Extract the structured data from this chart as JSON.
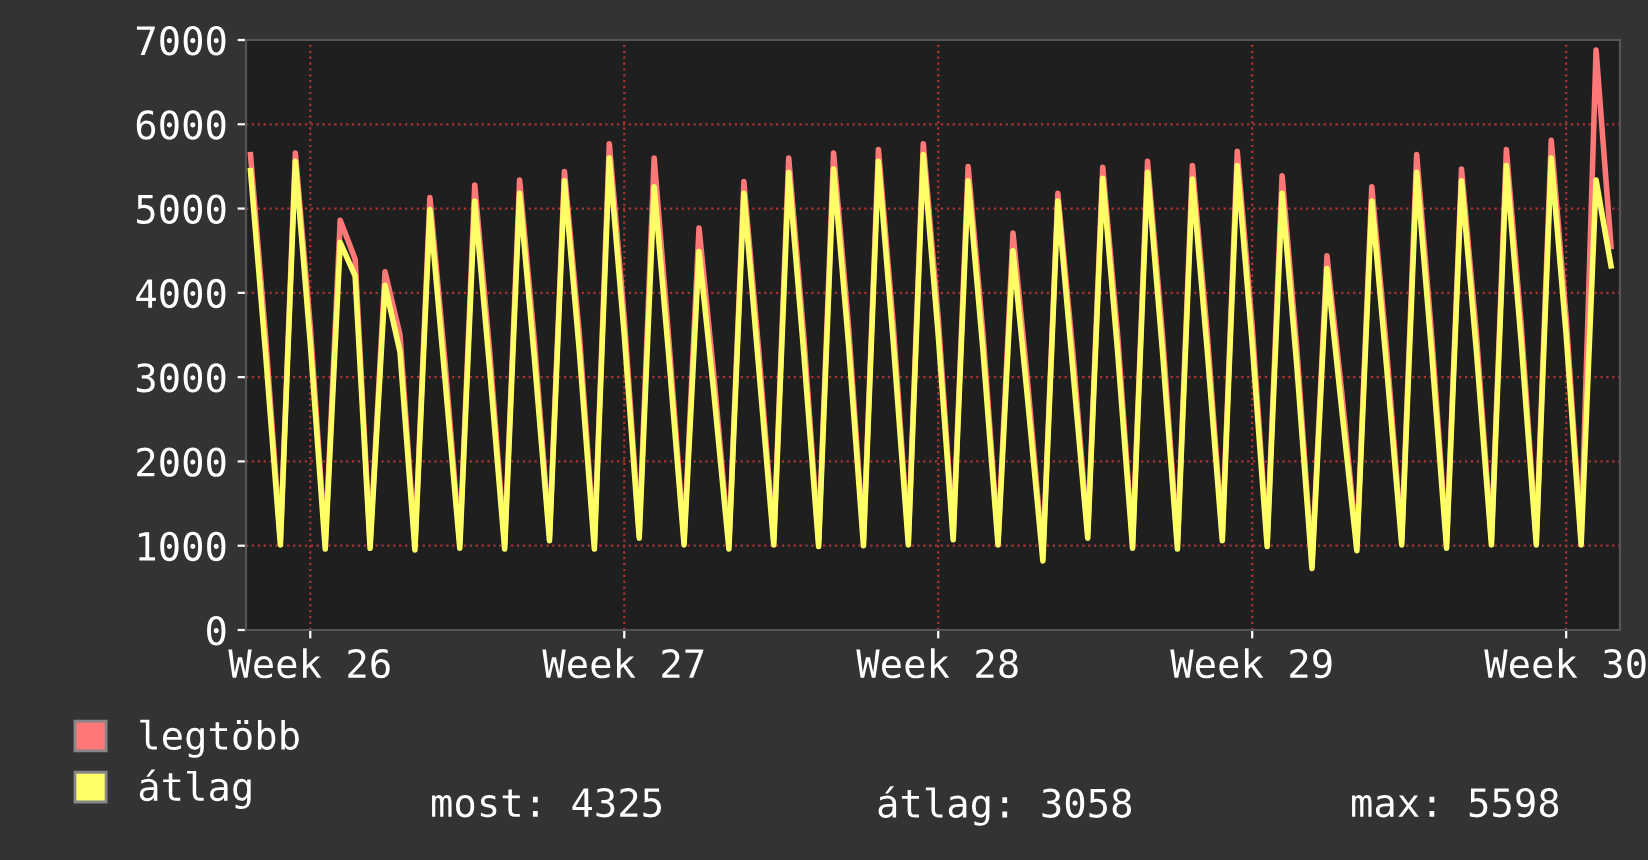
{
  "chart_data": {
    "type": "line",
    "categories": [
      null,
      null,
      null,
      null,
      "Week 26",
      null,
      null,
      null,
      null,
      null,
      null,
      null,
      null,
      null,
      null,
      null,
      null,
      null,
      null,
      null,
      null,
      null,
      null,
      null,
      null,
      "Week 27",
      null,
      null,
      null,
      null,
      null,
      null,
      null,
      null,
      null,
      null,
      null,
      null,
      null,
      null,
      null,
      null,
      null,
      null,
      null,
      null,
      "Week 28",
      null,
      null,
      null,
      null,
      null,
      null,
      null,
      null,
      null,
      null,
      null,
      null,
      null,
      null,
      null,
      null,
      null,
      null,
      null,
      null,
      "Week 29",
      null,
      null,
      null,
      null,
      null,
      null,
      null,
      null,
      null,
      null,
      null,
      null,
      null,
      null,
      null,
      null,
      null,
      null,
      null,
      null,
      "Week 30",
      null,
      null,
      null
    ],
    "series": [
      {
        "name": "legtöbb",
        "color": "#ff7777",
        "values": [
          5640,
          3500,
          1070,
          5660,
          3600,
          1020,
          4860,
          4400,
          1030,
          4250,
          3500,
          1010,
          5130,
          3200,
          1030,
          5280,
          3300,
          1020,
          5340,
          3400,
          1120,
          5440,
          3500,
          1020,
          5770,
          3700,
          1150,
          5600,
          3400,
          1070,
          4770,
          3000,
          1020,
          5320,
          3300,
          1070,
          5600,
          3500,
          1050,
          5660,
          3600,
          1060,
          5700,
          3600,
          1070,
          5770,
          3700,
          1130,
          5500,
          3500,
          1070,
          4710,
          2900,
          880,
          5180,
          3300,
          1150,
          5490,
          3500,
          1030,
          5560,
          3500,
          1020,
          5510,
          3500,
          1120,
          5680,
          3600,
          1050,
          5390,
          3300,
          790,
          4440,
          2800,
          1000,
          5260,
          3300,
          1070,
          5640,
          3500,
          1030,
          5470,
          3500,
          1070,
          5700,
          3600,
          1070,
          5810,
          3700,
          1070,
          6880,
          4550
        ]
      },
      {
        "name": "átlag",
        "color": "#ffff66",
        "values": [
          5450,
          3300,
          1010,
          5560,
          3400,
          960,
          4600,
          4200,
          970,
          4090,
          3300,
          950,
          4990,
          3000,
          970,
          5090,
          3100,
          960,
          5180,
          3200,
          1060,
          5330,
          3300,
          960,
          5600,
          3500,
          1090,
          5260,
          3200,
          1010,
          4490,
          2800,
          960,
          5180,
          3100,
          1010,
          5430,
          3300,
          990,
          5470,
          3400,
          1000,
          5560,
          3400,
          1010,
          5640,
          3500,
          1070,
          5330,
          3300,
          1010,
          4500,
          2700,
          820,
          5090,
          3100,
          1090,
          5360,
          3300,
          970,
          5430,
          3300,
          960,
          5350,
          3300,
          1060,
          5510,
          3400,
          990,
          5180,
          3100,
          730,
          4290,
          2600,
          940,
          5090,
          3100,
          1010,
          5430,
          3300,
          970,
          5330,
          3300,
          1010,
          5510,
          3400,
          1010,
          5600,
          3500,
          1010,
          5340,
          4320
        ]
      }
    ],
    "ylim": [
      0,
      7000
    ],
    "yticks": [
      0,
      1000,
      2000,
      3000,
      4000,
      5000,
      6000,
      7000
    ],
    "grid": true,
    "legend": "bottom left",
    "annotations": [
      "most: 4325",
      "átlag: 3058",
      "max: 5598"
    ]
  }
}
